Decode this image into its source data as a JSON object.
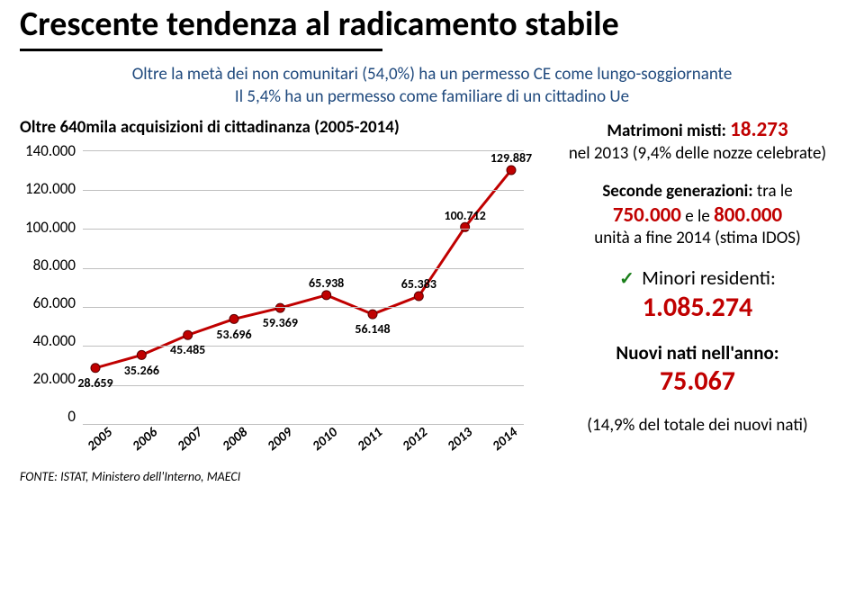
{
  "title": "Crescente tendenza al radicamento stabile",
  "subtitle_line1": "Oltre la metà dei non comunitari (54,0%) ha un permesso CE come lungo-soggiornante",
  "subtitle_line2": "Il 5,4% ha un permesso come familiare di un cittadino Ue",
  "chart": {
    "title": "Oltre 640mila acquisizioni di cittadinanza (2005-2014)",
    "ylim": [
      0,
      140000
    ],
    "ytick_step": 20000,
    "ytick_labels": [
      "140.000",
      "120.000",
      "100.000",
      "80.000",
      "60.000",
      "40.000",
      "20.000",
      "0"
    ],
    "years": [
      "2005",
      "2006",
      "2007",
      "2008",
      "2009",
      "2010",
      "2011",
      "2012",
      "2013",
      "2014"
    ],
    "values": [
      28659,
      35266,
      45485,
      53696,
      59369,
      65938,
      56148,
      65383,
      100712,
      129887
    ],
    "value_labels": [
      "28.659",
      "35.266",
      "45.485",
      "53.696",
      "59.369",
      "65.938",
      "56.148",
      "65.383",
      "100.712",
      "129.887"
    ],
    "label_positions": [
      "below",
      "below",
      "below",
      "below",
      "below",
      "above",
      "below",
      "above",
      "above",
      "above"
    ],
    "line_color": "#c00000",
    "marker_color": "#c00000",
    "grid_color": "#bfbfbf",
    "axis_color": "#808080"
  },
  "source": "FONTE: ISTAT, Ministero dell'Interno, MAECI",
  "right_col": {
    "marriages_label_pre": "Matrimoni misti: ",
    "marriages_value": "18.273",
    "marriages_note": "nel 2013 (9,4% delle nozze celebrate)",
    "secgen_label_pre": "Seconde generazioni:",
    "secgen_label_mid": " tra le ",
    "secgen_v1": "750.000",
    "secgen_mid2": " e le ",
    "secgen_v2": "800.000",
    "secgen_note": "unità a fine 2014 (stima IDOS)",
    "minors_label": "Minori residenti:",
    "minors_value": "1.085.274",
    "newborns_label": "Nuovi nati nell'anno:",
    "newborns_value": "75.067",
    "newborns_note": "(14,9% del totale dei nuovi nati)"
  }
}
